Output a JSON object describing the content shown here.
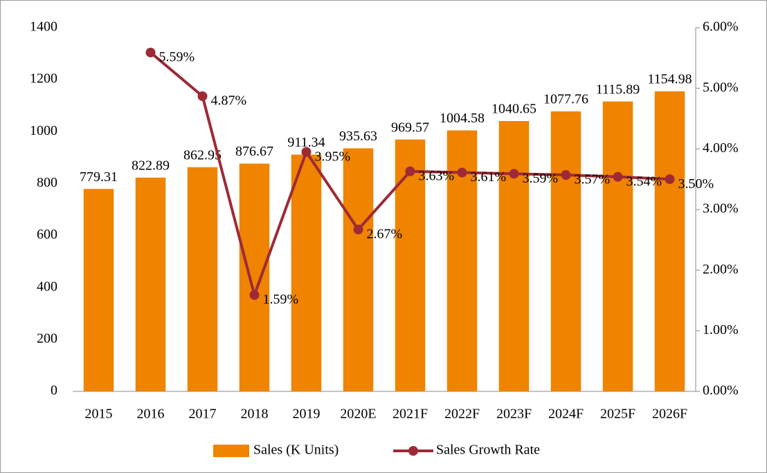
{
  "chart_data": {
    "type": "bar",
    "categories": [
      "2015",
      "2016",
      "2017",
      "2018",
      "2019",
      "2020E",
      "2021F",
      "2022F",
      "2023F",
      "2024F",
      "2025F",
      "2026F"
    ],
    "series": [
      {
        "name": "Sales (K Units)",
        "type": "bar",
        "color": "#f08300",
        "values": [
          779.31,
          822.89,
          862.95,
          876.67,
          911.34,
          935.63,
          969.57,
          1004.58,
          1040.65,
          1077.76,
          1115.89,
          1154.98
        ]
      },
      {
        "name": "Sales Growth Rate",
        "type": "line",
        "axis": "y2",
        "color": "#9e2a36",
        "values": [
          null,
          5.59,
          4.87,
          1.59,
          3.95,
          2.67,
          3.63,
          3.61,
          3.59,
          3.57,
          3.54,
          3.5
        ],
        "value_labels": [
          null,
          "5.59%",
          "4.87%",
          "1.59%",
          "3.95%",
          "2.67%",
          "3.63%",
          "3.61%",
          "3.59%",
          "3.57%",
          "3.54%",
          "3.50%"
        ]
      }
    ],
    "ylim": [
      0,
      1400
    ],
    "yticks": [
      0,
      200,
      400,
      600,
      800,
      1000,
      1200,
      1400
    ],
    "y2lim": [
      0,
      6
    ],
    "y2ticks": [
      {
        "value": 0,
        "label": "0.00%"
      },
      {
        "value": 1,
        "label": "1.00%"
      },
      {
        "value": 2,
        "label": "2.00%"
      },
      {
        "value": 3,
        "label": "3.00%"
      },
      {
        "value": 4,
        "label": "4.00%"
      },
      {
        "value": 5,
        "label": "5.00%"
      },
      {
        "value": 6,
        "label": "6.00%"
      }
    ],
    "legend": "bottom"
  }
}
